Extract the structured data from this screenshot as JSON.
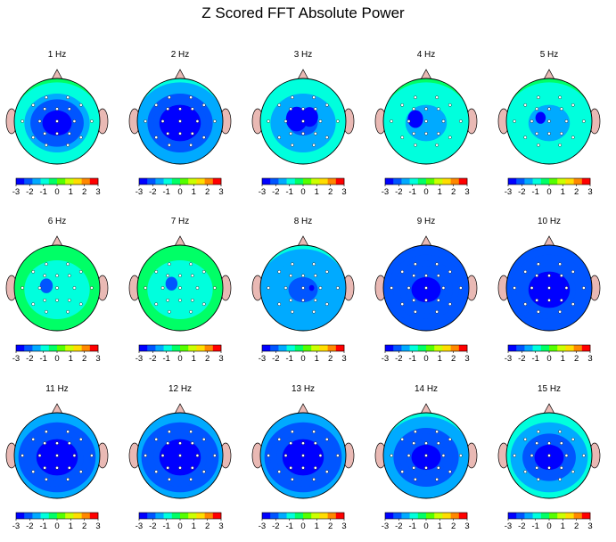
{
  "chart_data": {
    "type": "heatmap",
    "title": "Z Scored FFT Absolute Power",
    "colorbar": {
      "ticks": [
        "-3",
        "-2",
        "-1",
        "0",
        "1",
        "2",
        "3"
      ],
      "range": [
        -3,
        3
      ],
      "colors": [
        "#0000ff",
        "#0055ff",
        "#00aaff",
        "#00ffdd",
        "#00ff66",
        "#55ff00",
        "#ccff00",
        "#ffdd00",
        "#ff8800",
        "#ff0000"
      ]
    },
    "colors": {
      "head_outline": "#000000",
      "ear_fill": "#e9b9b4",
      "nose_fill": "#e9b9b4",
      "electrode_fill": "#ffffff"
    },
    "maps": [
      {
        "label": "1 Hz",
        "edge": -0.1,
        "center": -2.6,
        "blobs": []
      },
      {
        "label": "2 Hz",
        "edge": -1.0,
        "center": -2.8,
        "blobs": []
      },
      {
        "label": "3 Hz",
        "edge": -0.6,
        "center": -1.8,
        "blobs": [
          {
            "x": -0.15,
            "y": 0.05,
            "r": 0.25,
            "v": -2.7
          },
          {
            "x": 0.15,
            "y": 0.1,
            "r": 0.2,
            "v": -2.4
          }
        ]
      },
      {
        "label": "4 Hz",
        "edge": -0.3,
        "center": -1.3,
        "blobs": [
          {
            "x": -0.25,
            "y": 0.05,
            "r": 0.18,
            "v": -2.7
          }
        ]
      },
      {
        "label": "5 Hz",
        "edge": -0.3,
        "center": -1.2,
        "blobs": [
          {
            "x": -0.2,
            "y": 0.08,
            "r": 0.12,
            "v": -2.5
          }
        ]
      },
      {
        "label": "6 Hz",
        "edge": 0.1,
        "center": -0.9,
        "blobs": [
          {
            "x": -0.25,
            "y": 0.05,
            "r": 0.15,
            "v": -1.7
          }
        ]
      },
      {
        "label": "7 Hz",
        "edge": 0.1,
        "center": -1.0,
        "blobs": [
          {
            "x": -0.2,
            "y": 0.1,
            "r": 0.14,
            "v": -1.8
          }
        ]
      },
      {
        "label": "8 Hz",
        "edge": -1.0,
        "center": -1.8,
        "blobs": [
          {
            "x": 0.2,
            "y": 0.0,
            "r": 0.06,
            "v": -2.8
          }
        ]
      },
      {
        "label": "9 Hz",
        "edge": -1.9,
        "center": -2.4,
        "blobs": []
      },
      {
        "label": "10 Hz",
        "edge": -2.1,
        "center": -2.4,
        "blobs": []
      },
      {
        "label": "11 Hz",
        "edge": -1.4,
        "center": -2.8,
        "blobs": []
      },
      {
        "label": "12 Hz",
        "edge": -1.2,
        "center": -2.8,
        "blobs": []
      },
      {
        "label": "13 Hz",
        "edge": -1.2,
        "center": -2.7,
        "blobs": []
      },
      {
        "label": "14 Hz",
        "edge": -1.0,
        "center": -2.6,
        "blobs": []
      },
      {
        "label": "15 Hz",
        "edge": -0.6,
        "center": -2.5,
        "blobs": []
      }
    ]
  }
}
